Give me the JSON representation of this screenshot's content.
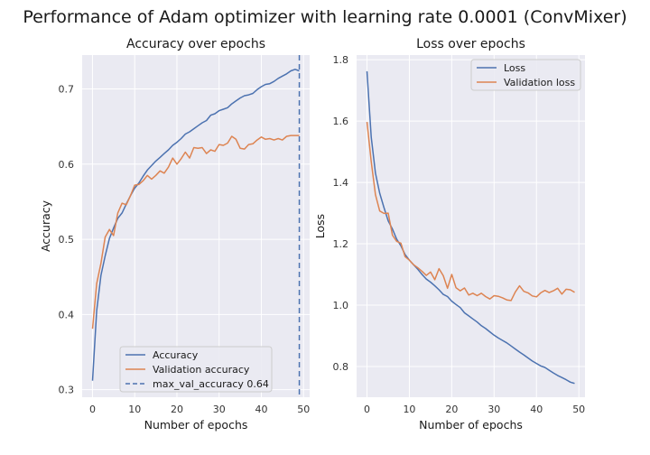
{
  "suptitle": "Performance of Adam optimizer with learning rate 0.0001 (ConvMixer)",
  "colors": {
    "blue": "#4c72b0",
    "orange": "#dd8452",
    "panel_bg": "#eaeaf2",
    "grid": "#ffffff"
  },
  "chart_data": [
    {
      "type": "line",
      "title": "Accuracy over epochs",
      "xlabel": "Number of epochs",
      "ylabel": "Accuracy",
      "xlim": [
        -2.45,
        51.45
      ],
      "ylim": [
        0.29,
        0.745
      ],
      "xticks": [
        0,
        10,
        20,
        30,
        40,
        50
      ],
      "yticks": [
        0.3,
        0.4,
        0.5,
        0.6,
        0.7
      ],
      "grid": true,
      "legend_position": "lower center",
      "x": [
        0,
        1,
        2,
        3,
        4,
        5,
        6,
        7,
        8,
        9,
        10,
        11,
        12,
        13,
        14,
        15,
        16,
        17,
        18,
        19,
        20,
        21,
        22,
        23,
        24,
        25,
        26,
        27,
        28,
        29,
        30,
        31,
        32,
        33,
        34,
        35,
        36,
        37,
        38,
        39,
        40,
        41,
        42,
        43,
        44,
        45,
        46,
        47,
        48,
        49
      ],
      "series": [
        {
          "name": "Accuracy",
          "color": "#4c72b0",
          "values": [
            0.312,
            0.405,
            0.452,
            0.478,
            0.501,
            0.515,
            0.528,
            0.535,
            0.547,
            0.558,
            0.568,
            0.575,
            0.584,
            0.592,
            0.598,
            0.604,
            0.609,
            0.614,
            0.619,
            0.625,
            0.629,
            0.634,
            0.64,
            0.643,
            0.647,
            0.651,
            0.655,
            0.658,
            0.665,
            0.667,
            0.671,
            0.673,
            0.675,
            0.68,
            0.684,
            0.688,
            0.691,
            0.692,
            0.694,
            0.699,
            0.703,
            0.706,
            0.707,
            0.71,
            0.714,
            0.717,
            0.72,
            0.724,
            0.726,
            0.724
          ]
        },
        {
          "name": "Validation accuracy",
          "color": "#dd8452",
          "values": [
            0.381,
            0.441,
            0.468,
            0.503,
            0.513,
            0.505,
            0.535,
            0.548,
            0.546,
            0.558,
            0.572,
            0.573,
            0.578,
            0.585,
            0.58,
            0.585,
            0.591,
            0.588,
            0.596,
            0.608,
            0.6,
            0.607,
            0.616,
            0.608,
            0.622,
            0.621,
            0.622,
            0.614,
            0.619,
            0.617,
            0.626,
            0.625,
            0.628,
            0.637,
            0.633,
            0.621,
            0.62,
            0.626,
            0.627,
            0.632,
            0.636,
            0.633,
            0.634,
            0.632,
            0.634,
            0.632,
            0.637,
            0.638,
            0.638,
            0.638
          ]
        }
      ],
      "vline": {
        "name": "max_val_accuracy 0.64",
        "x": 49,
        "color": "#4c72b0",
        "style": "dashed"
      }
    },
    {
      "type": "line",
      "title": "Loss over epochs",
      "xlabel": "Number of epochs",
      "ylabel": "Loss",
      "xlim": [
        -2.45,
        51.45
      ],
      "ylim": [
        0.7,
        1.815
      ],
      "xticks": [
        0,
        10,
        20,
        30,
        40,
        50
      ],
      "yticks": [
        0.8,
        1.0,
        1.2,
        1.4,
        1.6,
        1.8
      ],
      "grid": true,
      "legend_position": "upper right",
      "x": [
        0,
        1,
        2,
        3,
        4,
        5,
        6,
        7,
        8,
        9,
        10,
        11,
        12,
        13,
        14,
        15,
        16,
        17,
        18,
        19,
        20,
        21,
        22,
        23,
        24,
        25,
        26,
        27,
        28,
        29,
        30,
        31,
        32,
        33,
        34,
        35,
        36,
        37,
        38,
        39,
        40,
        41,
        42,
        43,
        44,
        45,
        46,
        47,
        48,
        49
      ],
      "series": [
        {
          "name": "Loss",
          "color": "#4c72b0",
          "values": [
            1.762,
            1.548,
            1.43,
            1.365,
            1.318,
            1.275,
            1.248,
            1.215,
            1.193,
            1.165,
            1.147,
            1.132,
            1.117,
            1.1,
            1.085,
            1.075,
            1.063,
            1.05,
            1.035,
            1.028,
            1.013,
            1.002,
            0.992,
            0.975,
            0.965,
            0.955,
            0.945,
            0.933,
            0.924,
            0.913,
            0.902,
            0.893,
            0.885,
            0.877,
            0.867,
            0.857,
            0.847,
            0.838,
            0.828,
            0.818,
            0.81,
            0.802,
            0.797,
            0.788,
            0.779,
            0.771,
            0.764,
            0.757,
            0.749,
            0.745
          ]
        },
        {
          "name": "Validation loss",
          "color": "#dd8452",
          "values": [
            1.597,
            1.468,
            1.36,
            1.307,
            1.299,
            1.3,
            1.228,
            1.208,
            1.202,
            1.158,
            1.147,
            1.132,
            1.122,
            1.11,
            1.097,
            1.108,
            1.083,
            1.119,
            1.096,
            1.055,
            1.1,
            1.057,
            1.047,
            1.056,
            1.033,
            1.039,
            1.031,
            1.039,
            1.028,
            1.02,
            1.031,
            1.029,
            1.024,
            1.017,
            1.015,
            1.043,
            1.063,
            1.045,
            1.04,
            1.03,
            1.027,
            1.04,
            1.048,
            1.041,
            1.047,
            1.055,
            1.036,
            1.052,
            1.05,
            1.042
          ]
        }
      ]
    }
  ]
}
